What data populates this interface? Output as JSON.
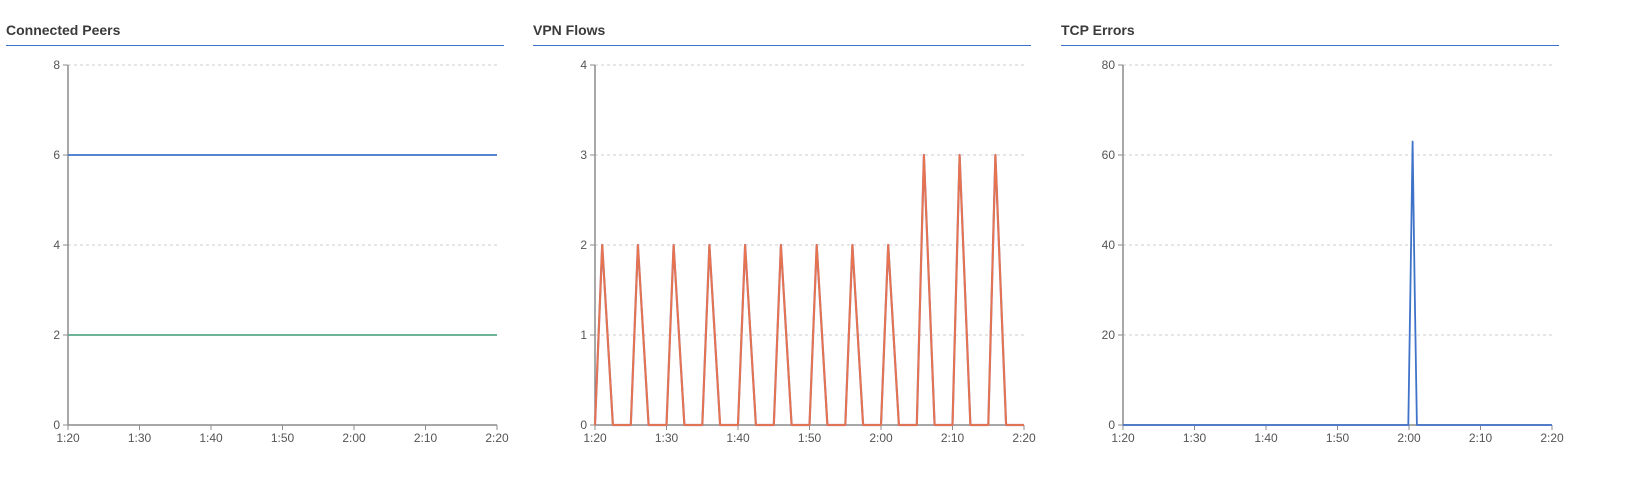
{
  "colors": {
    "title_rule": "#3f72c9",
    "grid": "#cfcfcf",
    "axis": "#8c8c8c",
    "text": "#555555"
  },
  "x_ticks": [
    "1:20",
    "1:30",
    "1:40",
    "1:50",
    "2:00",
    "2:10",
    "2:20"
  ],
  "chart_data": [
    {
      "type": "line",
      "title": "Connected Peers",
      "xlabel": "",
      "ylabel": "",
      "ylim": [
        0,
        8
      ],
      "y_ticks": [
        0,
        2,
        4,
        6,
        8
      ],
      "xlim_minutes": [
        80,
        140
      ],
      "grid": "horizontal dashed",
      "series": [
        {
          "color": "#3f72c9",
          "x": [
            80,
            140
          ],
          "values": [
            6,
            6
          ]
        },
        {
          "color": "#5aa88a",
          "x": [
            80,
            140
          ],
          "values": [
            2,
            2
          ]
        }
      ]
    },
    {
      "type": "line",
      "title": "VPN Flows",
      "xlabel": "",
      "ylabel": "",
      "ylim": [
        0,
        4
      ],
      "y_ticks": [
        0,
        1,
        2,
        3,
        4
      ],
      "xlim_minutes": [
        80,
        140
      ],
      "grid": "horizontal dashed",
      "series": [
        {
          "color": "#a46a8a",
          "x": [
            80,
            81,
            82.5,
            84,
            85,
            86,
            87.5,
            89,
            90,
            91,
            92.5,
            94,
            95,
            96,
            97.5,
            99,
            100,
            101,
            102.5,
            104,
            105,
            106,
            107.5,
            109,
            110,
            111,
            112.5,
            114,
            115,
            116,
            117.5,
            119,
            120,
            121,
            122.5,
            124,
            125,
            126,
            127.5,
            129,
            130,
            131,
            132.5,
            134,
            135,
            136,
            137.5,
            139,
            140
          ],
          "values": [
            0,
            2,
            0,
            0,
            0,
            2,
            0,
            0,
            0,
            2,
            0,
            0,
            0,
            2,
            0,
            0,
            0,
            2,
            0,
            0,
            0,
            2,
            0,
            0,
            0,
            2,
            0,
            0,
            0,
            2,
            0,
            0,
            0,
            2,
            0,
            0,
            0,
            3,
            0,
            0,
            0,
            3,
            0,
            0,
            0,
            3,
            0,
            0,
            0
          ]
        },
        {
          "color": "#e8744f",
          "x": [
            80,
            81,
            82.5,
            84,
            85,
            86,
            87.5,
            89,
            90,
            91,
            92.5,
            94,
            95,
            96,
            97.5,
            99,
            100,
            101,
            102.5,
            104,
            105,
            106,
            107.5,
            109,
            110,
            111,
            112.5,
            114,
            115,
            116,
            117.5,
            119,
            120,
            121,
            122.5,
            124,
            125,
            126,
            127.5,
            129,
            130,
            131,
            132.5,
            134,
            135,
            136,
            137.5,
            139,
            140
          ],
          "values": [
            0,
            2,
            0,
            0,
            0,
            2,
            0,
            0,
            0,
            2,
            0,
            0,
            0,
            2,
            0,
            0,
            0,
            2,
            0,
            0,
            0,
            2,
            0,
            0,
            0,
            2,
            0,
            0,
            0,
            2,
            0,
            0,
            0,
            2,
            0,
            0,
            0,
            3,
            0,
            0,
            0,
            3,
            0,
            0,
            0,
            3,
            0,
            0,
            0
          ]
        }
      ]
    },
    {
      "type": "line",
      "title": "TCP Errors",
      "xlabel": "",
      "ylabel": "",
      "ylim": [
        0,
        80
      ],
      "y_ticks": [
        0,
        20,
        40,
        60,
        80
      ],
      "xlim_minutes": [
        80,
        140
      ],
      "grid": "horizontal dashed",
      "series": [
        {
          "color": "#3f72c9",
          "x": [
            80,
            119.9,
            120.2,
            120.5,
            120.8,
            121.1,
            121.4,
            140
          ],
          "values": [
            0,
            0,
            30,
            63,
            30,
            0,
            0,
            0
          ]
        }
      ]
    }
  ]
}
